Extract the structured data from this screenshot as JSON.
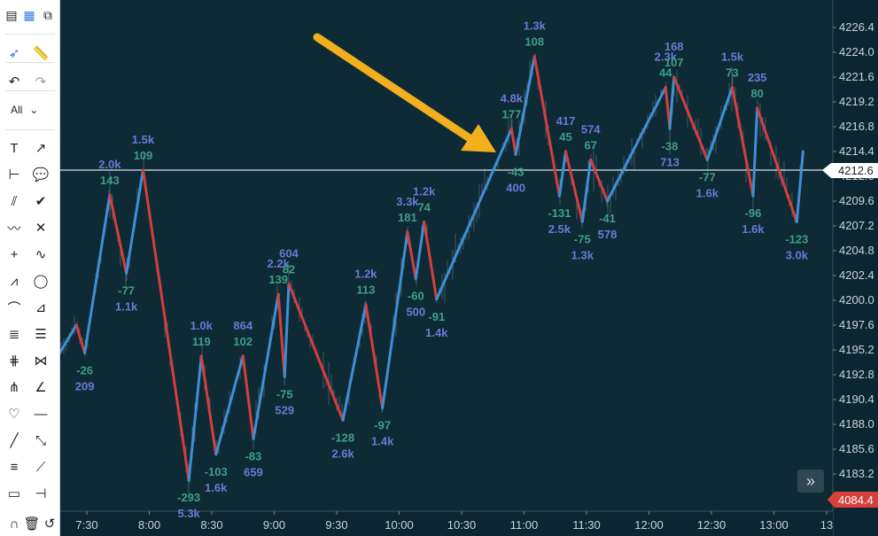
{
  "toolbar": {
    "filter_label": "All",
    "tools": [
      {
        "icon": "layout-list-icon"
      },
      {
        "icon": "layout-grid-icon"
      },
      {
        "icon": "popout-icon"
      },
      {
        "icon": "cursor-icon"
      },
      {
        "icon": "ruler-icon"
      },
      {
        "icon": "undo-icon"
      },
      {
        "icon": "redo-icon"
      },
      {
        "icon": "text-icon"
      },
      {
        "icon": "arrow-icon"
      },
      {
        "icon": "range-icon"
      },
      {
        "icon": "comment-icon"
      },
      {
        "icon": "parallel-lines-icon"
      },
      {
        "icon": "check-icon"
      },
      {
        "icon": "wave-icon"
      },
      {
        "icon": "cross-x-icon"
      },
      {
        "icon": "crosshair-icon"
      },
      {
        "icon": "brush-icon"
      },
      {
        "icon": "polyline-icon"
      },
      {
        "icon": "ellipse-icon"
      },
      {
        "icon": "arcs-icon"
      },
      {
        "icon": "fan-icon"
      },
      {
        "icon": "fib-retracement-icon"
      },
      {
        "icon": "fib-levels-icon"
      },
      {
        "icon": "gann-icon"
      },
      {
        "icon": "bowtie-icon"
      },
      {
        "icon": "pitchfork-icon"
      },
      {
        "icon": "angle-icon"
      },
      {
        "icon": "heart-icon"
      },
      {
        "icon": "horizontal-line-icon"
      },
      {
        "icon": "line-icon"
      },
      {
        "icon": "measure-icon"
      },
      {
        "icon": "regression-icon"
      },
      {
        "icon": "projection-icon"
      },
      {
        "icon": "rectangle-icon"
      },
      {
        "icon": "path-icon"
      },
      {
        "icon": "magnet-icon"
      },
      {
        "icon": "trash-icon"
      },
      {
        "icon": "reset-icon"
      }
    ]
  },
  "chart_data": {
    "type": "line",
    "y_axis_ticks": [
      "4226.4",
      "4224.0",
      "4221.6",
      "4219.2",
      "4216.8",
      "4214.4",
      "4212.0",
      "4209.6",
      "4207.2",
      "4204.8",
      "4202.4",
      "4200.0",
      "4197.6",
      "4195.2",
      "4192.8",
      "4190.4",
      "4188.0",
      "4185.6",
      "4183.2",
      "4180.8"
    ],
    "x_axis_ticks": [
      "7:30",
      "8:00",
      "8:30",
      "9:00",
      "9:30",
      "10:00",
      "10:30",
      "11:00",
      "11:30",
      "12:00",
      "12:30",
      "13:00",
      "13"
    ],
    "ylim": [
      4179.6,
      4227.6
    ],
    "current_price": "4212.6",
    "bottom_price": "4084.4",
    "colors": {
      "up": "#3e8fd6",
      "down": "#d63d3d",
      "arrow": "#f2b01e",
      "background": "#0d2a35",
      "price_line": "#d8e3e6"
    },
    "swings": [
      {
        "t": "7:10",
        "price": 4192.6
      },
      {
        "t": "7:25",
        "price": 4197.6
      },
      {
        "t": "7:29",
        "price": 4194.9,
        "volume": "209",
        "delta": "-26"
      },
      {
        "t": "7:41",
        "price": 4210.2,
        "volume": "2.0k",
        "delta": "143"
      },
      {
        "t": "7:49",
        "price": 4202.6,
        "volume": "1.1k",
        "delta": "-77"
      },
      {
        "t": "7:57",
        "price": 4212.6,
        "volume": "1.5k",
        "delta": "109"
      },
      {
        "t": "8:19",
        "price": 4182.6,
        "volume": "5.3k",
        "delta": "-293"
      },
      {
        "t": "8:25",
        "price": 4194.6,
        "volume": "1.0k",
        "delta": "119"
      },
      {
        "t": "8:32",
        "price": 4185.1,
        "volume": "1.6k",
        "delta": "-103"
      },
      {
        "t": "8:45",
        "price": 4194.6,
        "volume": "864",
        "delta": "102"
      },
      {
        "t": "8:50",
        "price": 4186.6,
        "volume": "659",
        "delta": "-83"
      },
      {
        "t": "9:02",
        "price": 4200.6,
        "volume": "2.2k",
        "delta": "139"
      },
      {
        "t": "9:05",
        "price": 4192.6,
        "volume": "529",
        "delta": "-75"
      },
      {
        "t": "9:07",
        "price": 4201.6,
        "volume": "604",
        "delta": "82"
      },
      {
        "t": "9:33",
        "price": 4188.4,
        "volume": "2.6k",
        "delta": "-128"
      },
      {
        "t": "9:44",
        "price": 4199.6,
        "volume": "1.2k",
        "delta": "113"
      },
      {
        "t": "9:52",
        "price": 4189.6,
        "volume": "1.4k",
        "delta": "-97"
      },
      {
        "t": "10:04",
        "price": 4206.6,
        "volume": "3.3k",
        "delta": "181"
      },
      {
        "t": "10:08",
        "price": 4202.1,
        "volume": "500",
        "delta": "-60"
      },
      {
        "t": "10:12",
        "price": 4207.6,
        "volume": "1.2k",
        "delta": "74"
      },
      {
        "t": "10:18",
        "price": 4200.1,
        "volume": "1.4k",
        "delta": "-91"
      },
      {
        "t": "10:54",
        "price": 4216.6,
        "volume": "4.8k",
        "delta": "177"
      },
      {
        "t": "10:56",
        "price": 4214.1,
        "volume": "400",
        "delta": "-43"
      },
      {
        "t": "11:05",
        "price": 4223.6,
        "volume": "1.3k",
        "delta": "108"
      },
      {
        "t": "11:17",
        "price": 4210.1,
        "volume": "2.5k",
        "delta": "-131"
      },
      {
        "t": "11:20",
        "price": 4214.4,
        "volume": "417",
        "delta": "45"
      },
      {
        "t": "11:28",
        "price": 4207.6,
        "volume": "1.3k",
        "delta": "-75"
      },
      {
        "t": "11:32",
        "price": 4213.6,
        "volume": "574",
        "delta": "67"
      },
      {
        "t": "11:40",
        "price": 4209.6,
        "volume": "578",
        "delta": "-41"
      },
      {
        "t": "12:08",
        "price": 4220.6,
        "volume": "2.3k",
        "delta": "44"
      },
      {
        "t": "12:10",
        "price": 4216.6,
        "volume": "713",
        "delta": "-38"
      },
      {
        "t": "12:12",
        "price": 4221.6,
        "volume": "168",
        "delta": "107"
      },
      {
        "t": "12:28",
        "price": 4213.6,
        "volume": "1.6k",
        "delta": "-77"
      },
      {
        "t": "12:40",
        "price": 4220.6,
        "volume": "1.5k",
        "delta": "73"
      },
      {
        "t": "12:50",
        "price": 4210.1,
        "volume": "1.6k",
        "delta": "-96"
      },
      {
        "t": "12:52",
        "price": 4218.6,
        "volume": "235",
        "delta": "80"
      },
      {
        "t": "13:11",
        "price": 4207.6,
        "volume": "3.0k",
        "delta": "-123"
      },
      {
        "t": "13:14",
        "price": 4214.4
      }
    ]
  }
}
